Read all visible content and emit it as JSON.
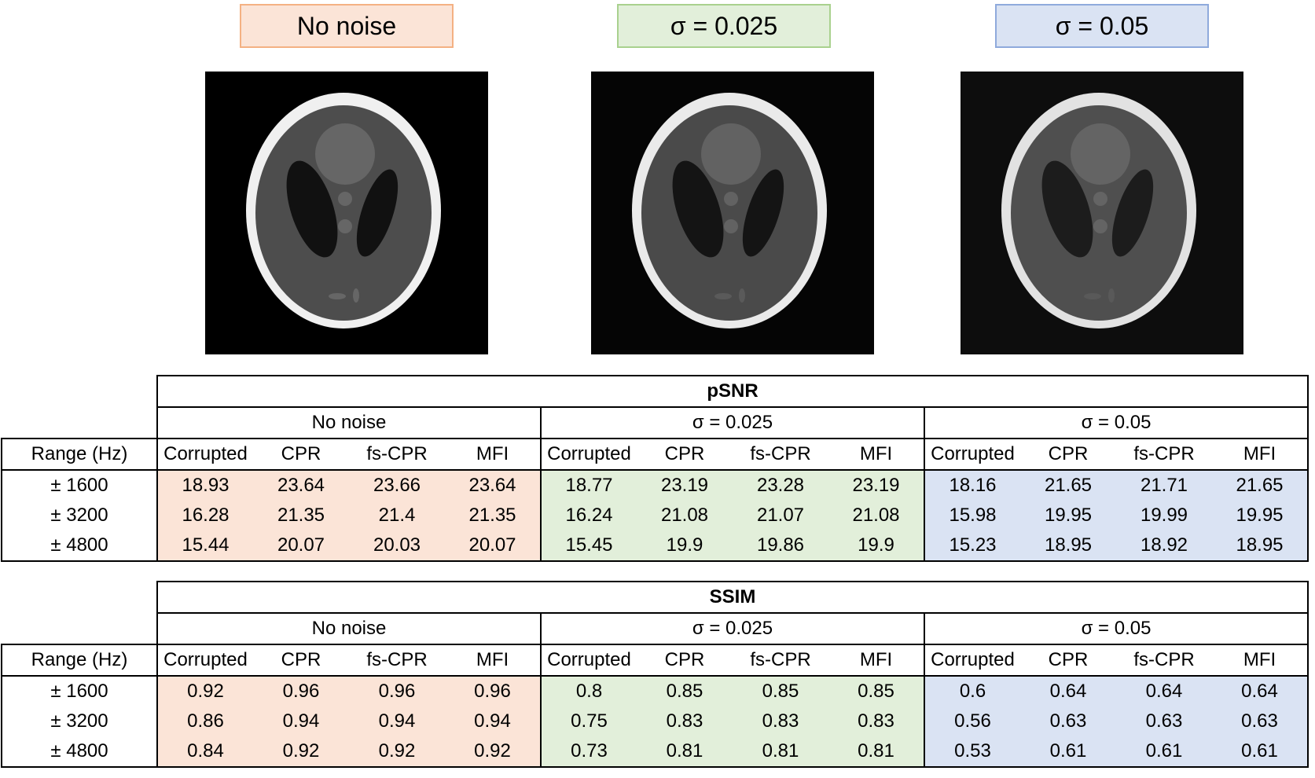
{
  "noise_levels": [
    "No noise",
    "σ = 0.025",
    "σ = 0.05"
  ],
  "column_headers": [
    "Corrupted",
    "CPR",
    "fs-CPR",
    "MFI"
  ],
  "range_header": "Range (Hz)",
  "ranges": [
    "± 1600",
    "± 3200",
    "± 4800"
  ],
  "psnr": {
    "title": "pSNR",
    "rows": [
      [
        "18.93",
        "23.64",
        "23.66",
        "23.64",
        "18.77",
        "23.19",
        "23.28",
        "23.19",
        "18.16",
        "21.65",
        "21.71",
        "21.65"
      ],
      [
        "16.28",
        "21.35",
        "21.4",
        "21.35",
        "16.24",
        "21.08",
        "21.07",
        "21.08",
        "15.98",
        "19.95",
        "19.99",
        "19.95"
      ],
      [
        "15.44",
        "20.07",
        "20.03",
        "20.07",
        "15.45",
        "19.9",
        "19.86",
        "19.9",
        "15.23",
        "18.95",
        "18.92",
        "18.95"
      ]
    ]
  },
  "ssim": {
    "title": "SSIM",
    "rows": [
      [
        "0.92",
        "0.96",
        "0.96",
        "0.96",
        "0.8",
        "0.85",
        "0.85",
        "0.85",
        "0.6",
        "0.64",
        "0.64",
        "0.64"
      ],
      [
        "0.86",
        "0.94",
        "0.94",
        "0.94",
        "0.75",
        "0.83",
        "0.83",
        "0.83",
        "0.56",
        "0.63",
        "0.63",
        "0.63"
      ],
      [
        "0.84",
        "0.92",
        "0.92",
        "0.92",
        "0.73",
        "0.81",
        "0.81",
        "0.81",
        "0.53",
        "0.61",
        "0.61",
        "0.61"
      ]
    ]
  },
  "colors": {
    "no_noise_fill": "#fbe4d7",
    "no_noise_border": "#f4b183",
    "sigma_025_fill": "#e2efda",
    "sigma_025_border": "#a9d18e",
    "sigma_05_fill": "#dae3f3",
    "sigma_05_border": "#8faadc"
  },
  "images": [
    "shepp-logan-phantom-no-noise",
    "shepp-logan-phantom-sigma-0.025",
    "shepp-logan-phantom-sigma-0.05"
  ]
}
